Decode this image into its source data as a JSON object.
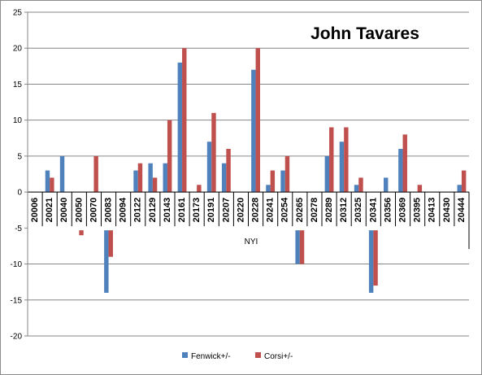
{
  "chart_data": {
    "type": "bar",
    "title": "John Tavares",
    "group_label": "NYI",
    "ylim": [
      -20,
      25
    ],
    "ytick_step": 5,
    "grid": true,
    "legend_position": "bottom",
    "categories": [
      "20006",
      "20021",
      "20040",
      "20050",
      "20070",
      "20083",
      "20094",
      "20122",
      "20129",
      "20143",
      "20161",
      "20173",
      "20191",
      "20207",
      "20220",
      "20228",
      "20241",
      "20254",
      "20265",
      "20278",
      "20289",
      "20312",
      "20325",
      "20341",
      "20356",
      "20369",
      "20395",
      "20413",
      "20430",
      "20444"
    ],
    "series": [
      {
        "name": "Fenwick+/-",
        "color": "#4F81BD",
        "values": [
          -2,
          3,
          5,
          -5,
          -1,
          -14,
          0,
          3,
          4,
          4,
          18,
          -1,
          7,
          4,
          -3,
          17,
          1,
          3,
          -10,
          -1,
          5,
          7,
          1,
          -14,
          2,
          6,
          0,
          -3,
          0,
          1
        ]
      },
      {
        "name": "Corsi+/-",
        "color": "#C0504D",
        "values": [
          -5,
          2,
          0,
          -6,
          5,
          -9,
          -1,
          4,
          2,
          10,
          20,
          1,
          11,
          6,
          0,
          20,
          3,
          5,
          -10,
          0,
          9,
          9,
          2,
          -13,
          0,
          8,
          1,
          -1,
          -3,
          3
        ]
      }
    ]
  }
}
